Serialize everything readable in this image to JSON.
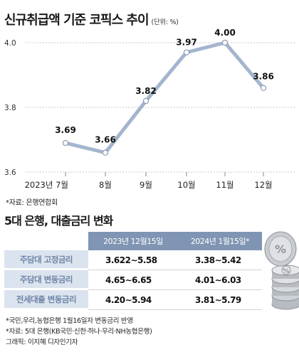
{
  "title": "신규취급액 기준 코픽스 추이",
  "title_unit": "(단위: %)",
  "chart_data": {
    "type": "line",
    "categories": [
      "2023년 7월",
      "8월",
      "9월",
      "10월",
      "11월",
      "12월"
    ],
    "values": [
      3.69,
      3.66,
      3.82,
      3.97,
      4.0,
      3.86
    ],
    "data_labels": [
      "3.69",
      "3.66",
      "3.82",
      "3.97",
      "4.00",
      "3.86"
    ],
    "y_ticks": [
      "4.0",
      "3.8",
      "3.6"
    ],
    "ylim": [
      3.6,
      4.0
    ],
    "grid": "horizontal dashed",
    "line_color": "#a3b5cf",
    "marker_fill": "#ffffff",
    "marker_stroke": "#8a9bb3"
  },
  "source_chart": "*자료: 은행연합회",
  "section_title": "5대 은행, 대출금리 변화",
  "table": {
    "columns": [
      "2023년 12월15일",
      "2024년 1월15일*"
    ],
    "rows": [
      {
        "label": "주담대 고정금리",
        "v1": "3.622∼5.58",
        "v2": "3.38∼5.42"
      },
      {
        "label": "주담대 변동금리",
        "v1": "4.65∼6.65",
        "v2": "4.01∼6.03"
      },
      {
        "label": "전세대출 변동금리",
        "v1": "4.20∼5.94",
        "v2": "3.81∼5.79"
      }
    ]
  },
  "notes": [
    "*국민,우리,농협은행 1월16일자 변동금리 반영",
    "*자료: 5대 은행(KB국민·신한·하나·우리·NH농협은행)",
    "그래픽: 이지혜 디자인기자"
  ],
  "colors": {
    "header_bg": "#7f95b3",
    "label_bg": "#dbe3ee",
    "label_text": "#6f86a8"
  },
  "icons": {
    "coins": "coin-stack-icon"
  }
}
